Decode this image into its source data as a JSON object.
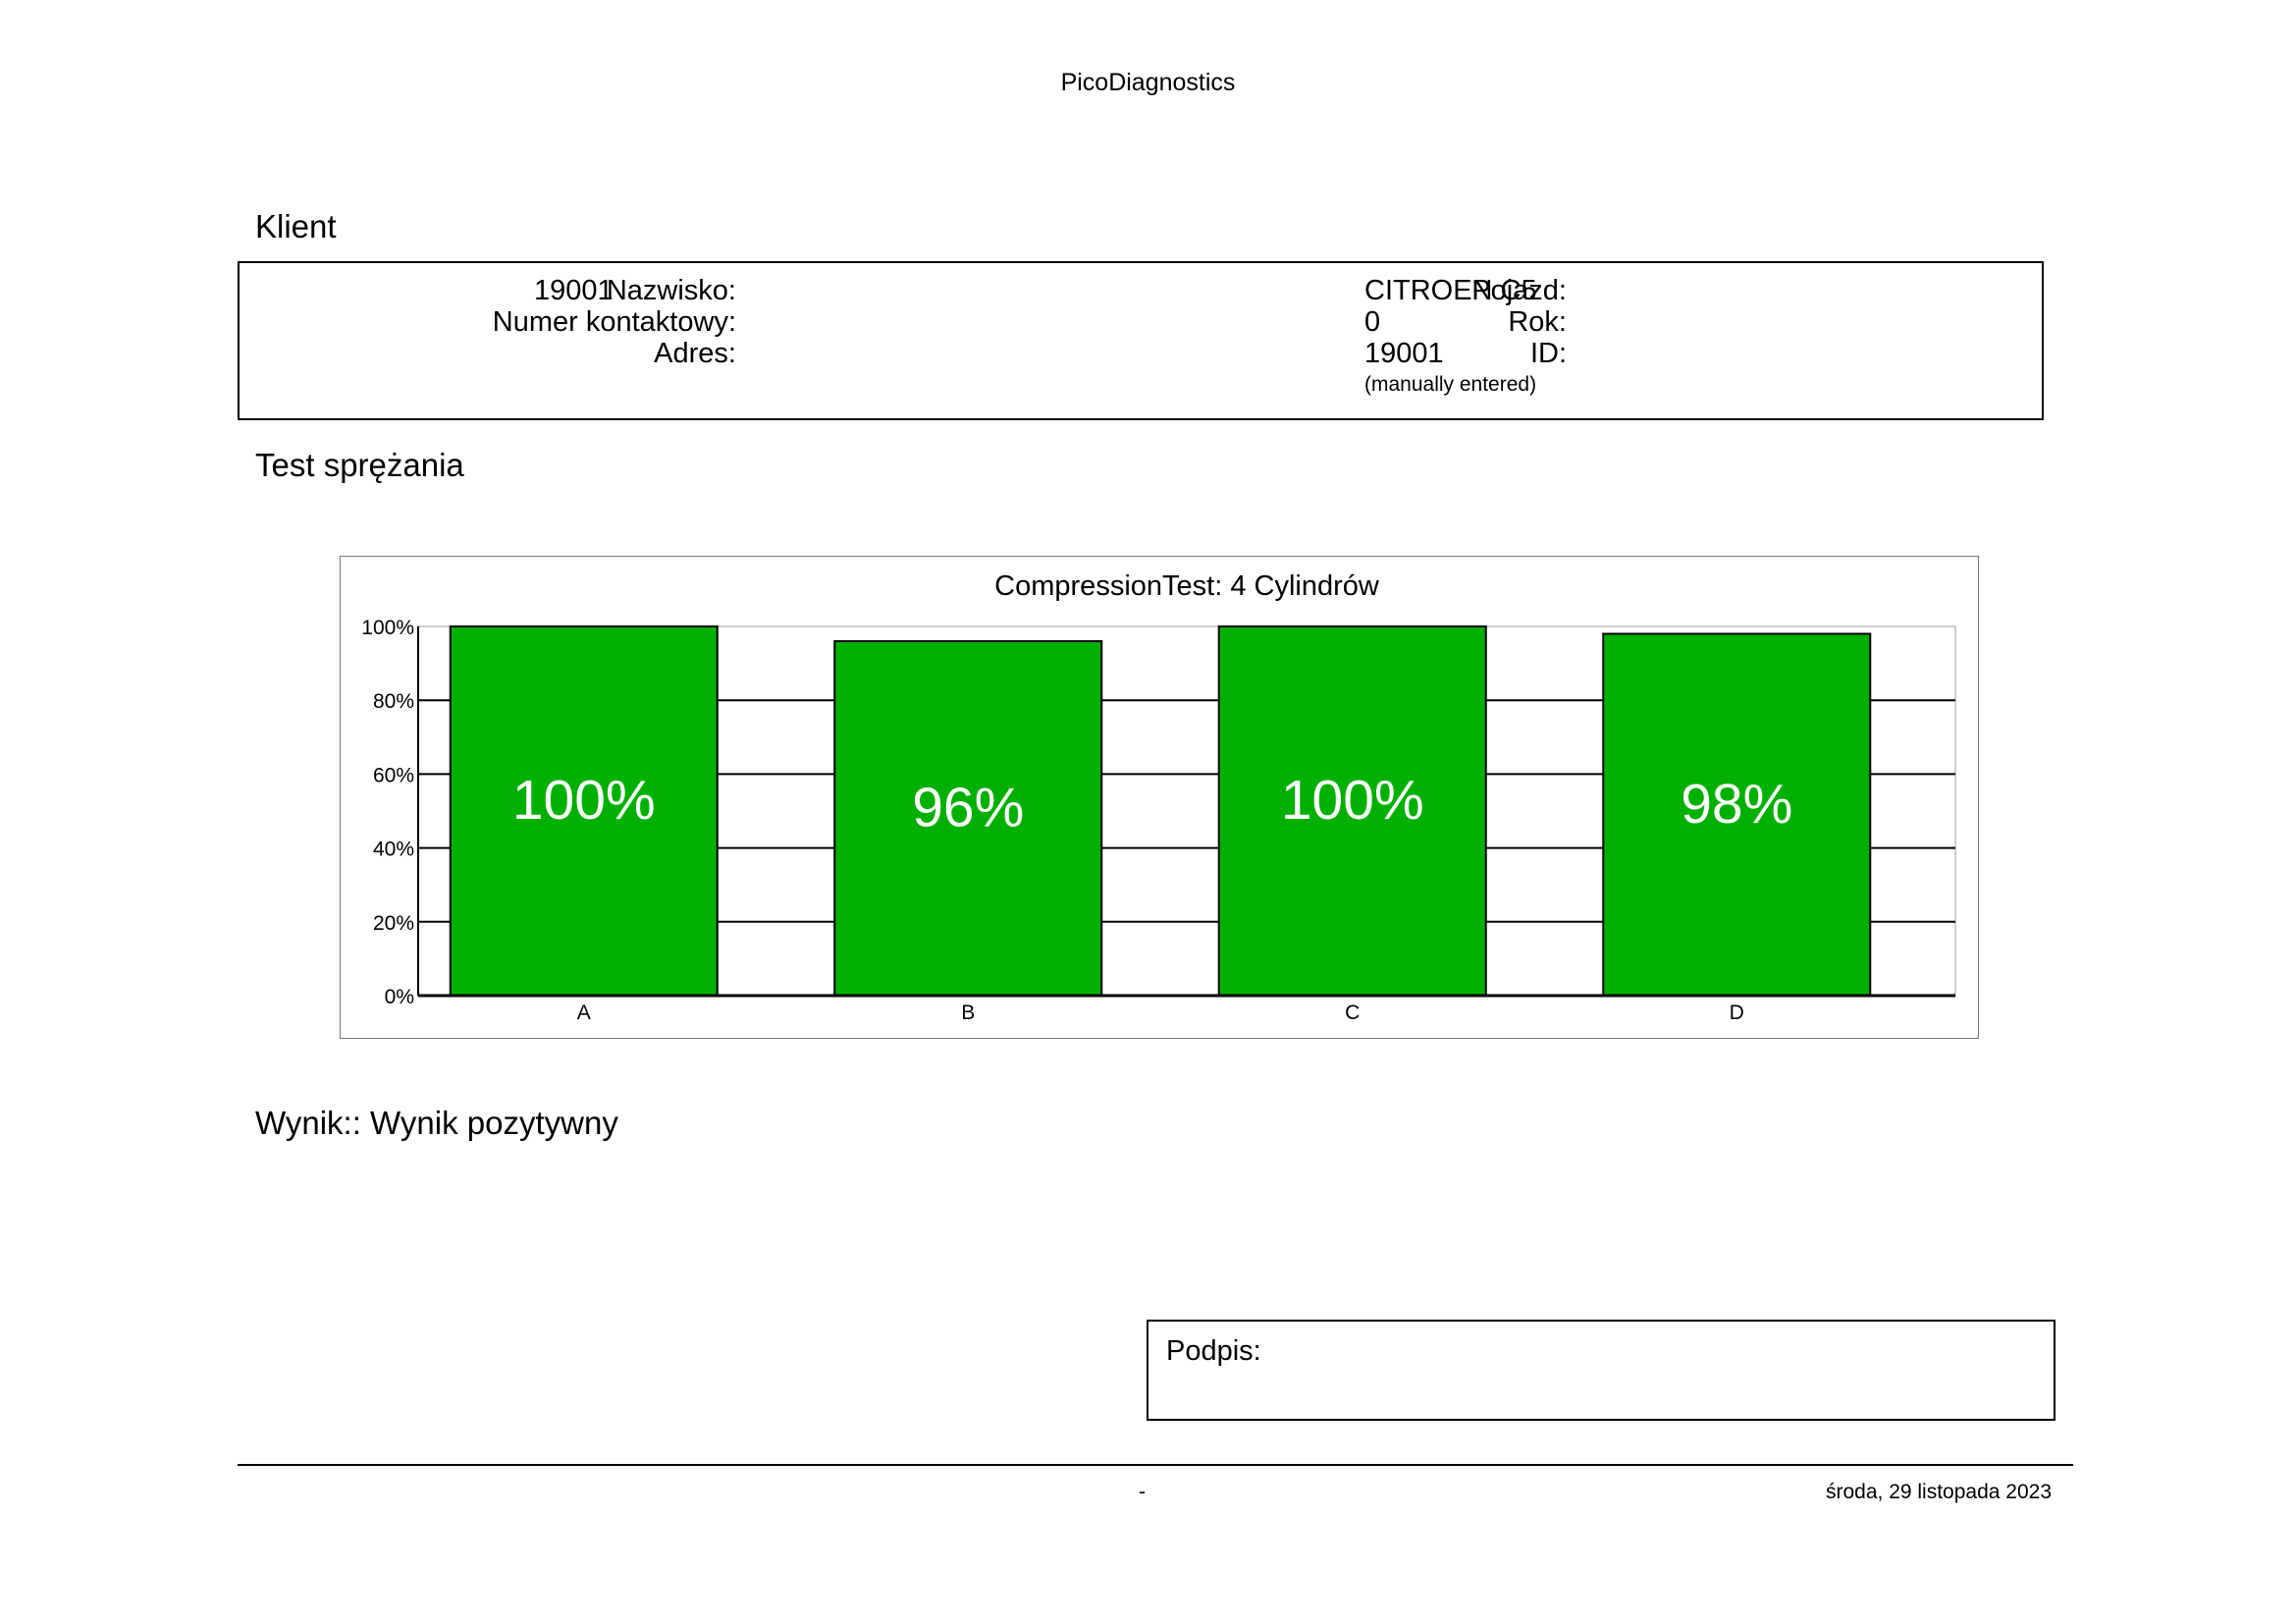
{
  "header": {
    "title": "PicoDiagnostics"
  },
  "client_section": {
    "title": "Klient",
    "surname_label": "Nazwisko:",
    "surname_value": "19001",
    "contact_label": "Numer kontaktowy:",
    "contact_value": "",
    "address_label": "Adres:",
    "address_value": "",
    "vehicle_label": "Pojazd:",
    "vehicle_value": "CITROEN C5",
    "year_label": "Rok:",
    "year_value": "0",
    "id_label": "ID:",
    "id_value": "19001",
    "id_note": "(manually entered)"
  },
  "test_section": {
    "title": "Test sprężania"
  },
  "chart_data": {
    "type": "bar",
    "title": "CompressionTest: 4 Cylindrów",
    "categories": [
      "A",
      "B",
      "C",
      "D"
    ],
    "values": [
      100,
      96,
      100,
      98
    ],
    "value_labels": [
      "100%",
      "96%",
      "100%",
      "98%"
    ],
    "y_ticks": [
      "0%",
      "20%",
      "40%",
      "60%",
      "80%",
      "100%"
    ],
    "ylim": [
      0,
      100
    ],
    "grid": true,
    "bar_color": "#00b000",
    "label_color": "#ffffff"
  },
  "result": {
    "text": "Wynik:: Wynik pozytywny"
  },
  "signature": {
    "label": "Podpis:"
  },
  "footer": {
    "center_text": "-",
    "date": "środa, 29 listopada 2023"
  }
}
